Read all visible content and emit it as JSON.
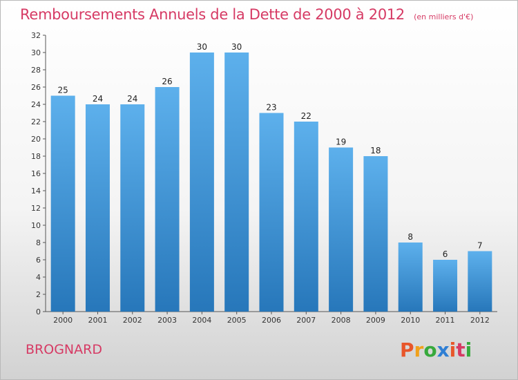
{
  "chart_data": {
    "type": "bar",
    "title": "Remboursements Annuels de la Dette de 2000 à 2012",
    "subtitle": "(en milliers d'€)",
    "categories": [
      "2000",
      "2001",
      "2002",
      "2003",
      "2004",
      "2005",
      "2006",
      "2007",
      "2008",
      "2009",
      "2010",
      "2011",
      "2012"
    ],
    "values": [
      25,
      24,
      24,
      26,
      30,
      30,
      23,
      22,
      19,
      18,
      8,
      6,
      7
    ],
    "xlabel": "",
    "ylabel": "",
    "ylim": [
      0,
      32
    ],
    "yticks": [
      0,
      2,
      4,
      6,
      8,
      10,
      12,
      14,
      16,
      18,
      20,
      22,
      24,
      26,
      28,
      30,
      32
    ],
    "grid": false,
    "legend": "none",
    "bar_color": "#3b8fd4"
  },
  "footer": {
    "place": "BROGNARD",
    "brand": "Proxiti",
    "brand_colors": [
      "#e8562a",
      "#f0a11c",
      "#37a93c",
      "#2f7fd4",
      "#e8562a",
      "#d63a64",
      "#37a93c"
    ]
  },
  "colors": {
    "title": "#d63a64"
  }
}
